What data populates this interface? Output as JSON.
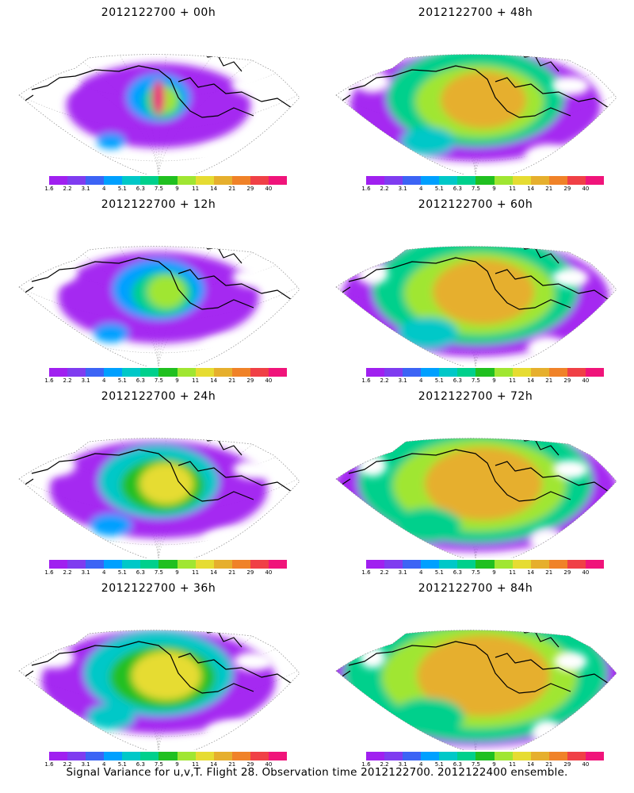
{
  "caption": "Signal Variance for u,v,T. Flight 28. Observation time 2012122700. 2012122400 ensemble.",
  "colorbar": {
    "labels": [
      "1.6",
      "2.2",
      "3.1",
      "4",
      "5.1",
      "6.3",
      "7.5",
      "9",
      "11",
      "14",
      "21",
      "29",
      "40"
    ],
    "colors": [
      "#a020f0",
      "#7f3cf0",
      "#3c64f5",
      "#00a0ff",
      "#00c8c8",
      "#00d08c",
      "#20c020",
      "#a0e632",
      "#e6dc32",
      "#e6af2d",
      "#f08228",
      "#f04046",
      "#f0147a"
    ]
  },
  "panels": [
    {
      "title": "2012122700 + 00h",
      "level": 0
    },
    {
      "title": "2012122700 + 48h",
      "level": 4
    },
    {
      "title": "2012122700 + 12h",
      "level": 1
    },
    {
      "title": "2012122700 + 60h",
      "level": 5
    },
    {
      "title": "2012122700 + 24h",
      "level": 2
    },
    {
      "title": "2012122700 + 72h",
      "level": 6
    },
    {
      "title": "2012122700 + 36h",
      "level": 3
    },
    {
      "title": "2012122700 + 84h",
      "level": 7
    }
  ]
}
